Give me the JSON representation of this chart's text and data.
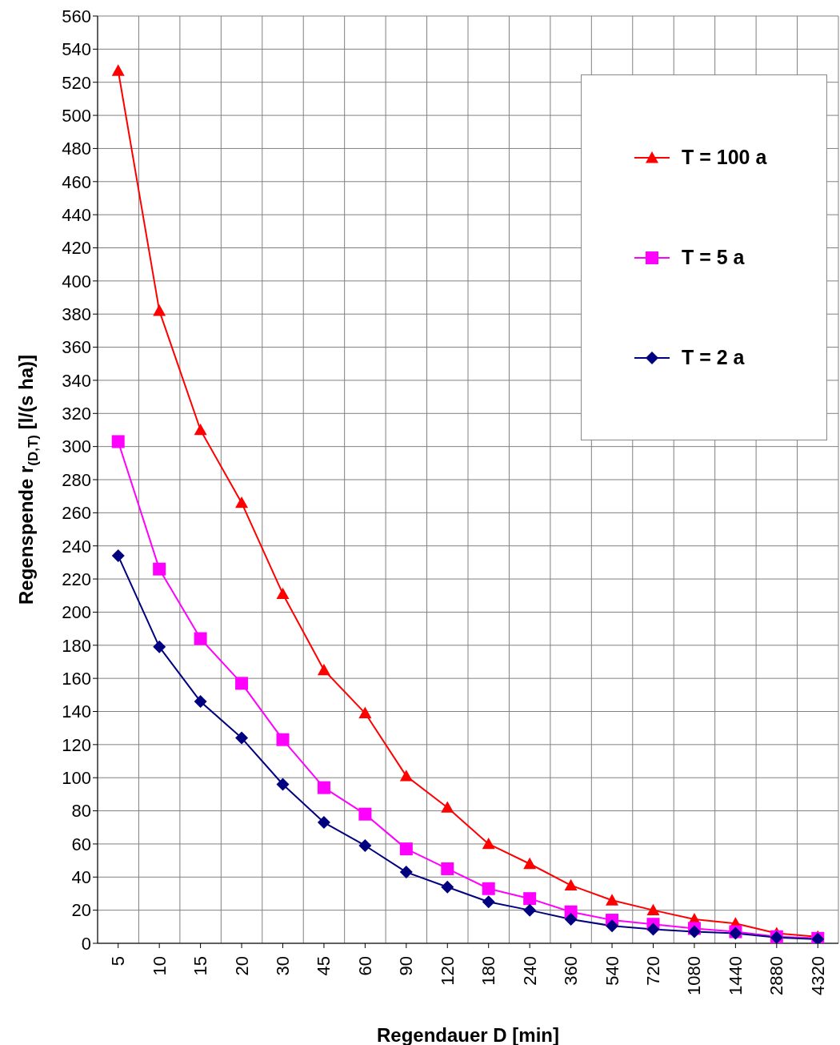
{
  "chart_data": {
    "type": "line",
    "xlabel": "Regendauer D [min]",
    "ylabel": "Regenspende r$_{(D,T)}$ [l/(s ha)]",
    "categories": [
      "5",
      "10",
      "15",
      "20",
      "30",
      "45",
      "60",
      "90",
      "120",
      "180",
      "240",
      "360",
      "540",
      "720",
      "1080",
      "1440",
      "2880",
      "4320"
    ],
    "series": [
      {
        "name": "T = 100 a",
        "color": "#ff0000",
        "marker": "triangle",
        "values": [
          527,
          382,
          310,
          266,
          211,
          165,
          139,
          101,
          82,
          60,
          48,
          35,
          26,
          20,
          14.5,
          12,
          6,
          4
        ]
      },
      {
        "name": "T = 5 a",
        "color": "#ff00ff",
        "marker": "square",
        "values": [
          303,
          226,
          184,
          157,
          123,
          94,
          78,
          57,
          45,
          33,
          27,
          19,
          14,
          11.5,
          9,
          7,
          4,
          3
        ]
      },
      {
        "name": "T = 2 a",
        "color": "#000080",
        "marker": "diamond",
        "values": [
          234,
          179,
          146,
          124,
          96,
          73,
          59,
          43,
          34,
          25,
          20,
          14.5,
          10.5,
          8.5,
          7,
          6,
          3.5,
          2.5
        ]
      }
    ],
    "ylim": [
      0,
      560
    ],
    "yticks": [
      0,
      20,
      40,
      60,
      80,
      100,
      120,
      140,
      160,
      180,
      200,
      220,
      240,
      260,
      280,
      300,
      320,
      340,
      360,
      380,
      400,
      420,
      440,
      460,
      480,
      500,
      520,
      540,
      560
    ],
    "grid": true,
    "legend": "top right"
  }
}
